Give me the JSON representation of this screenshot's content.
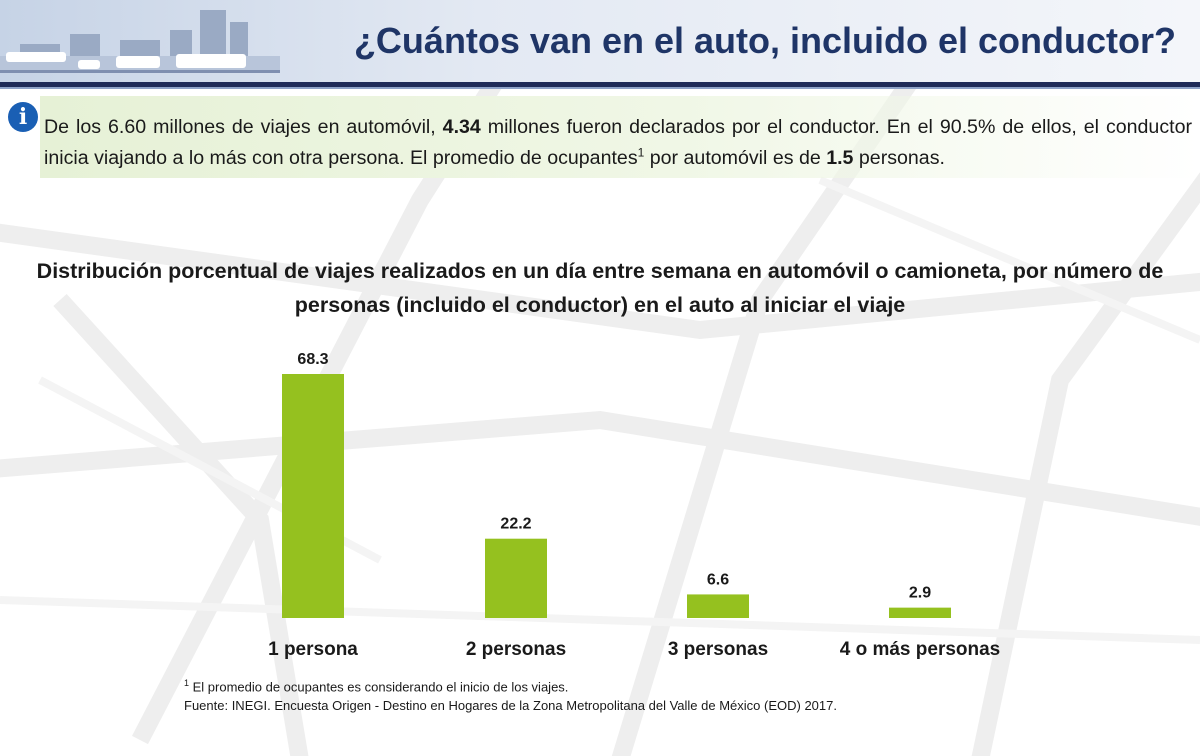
{
  "header": {
    "title": "¿Cuántos van en el auto, incluido el conductor?"
  },
  "intro": {
    "part1": "De los 6.60 millones de viajes en automóvil, ",
    "bold1": "4.34",
    "part2": " millones fueron declarados por el conductor. En el 90.5% de ellos, el conductor inicia viajando a lo más con otra persona. El promedio de ocupantes",
    "sup": "1",
    "part3": " por automóvil es de ",
    "bold2": "1.5",
    "part4": " personas."
  },
  "chart_data": {
    "type": "bar",
    "title": "Distribución porcentual de viajes realizados en un día entre semana en automóvil o camioneta, por número de personas (incluido el conductor) en el auto al iniciar el viaje",
    "categories": [
      "1 persona",
      "2 personas",
      "3 personas",
      "4 o más personas"
    ],
    "values": [
      68.3,
      22.2,
      6.6,
      2.9
    ],
    "value_labels": [
      "68.3",
      "22.2",
      "6.6",
      "2.9"
    ],
    "xlabel": "",
    "ylabel": "",
    "ylim": [
      0,
      68.3
    ],
    "grid": false,
    "bar_color": "#95c11f"
  },
  "footnote": {
    "sup": "1",
    "text": " El promedio de ocupantes es considerando el inicio de los viajes."
  },
  "source": "Fuente: INEGI. Encuesta Origen - Destino en Hogares de la Zona Metropolitana del Valle de México (EOD) 2017.",
  "colors": {
    "title": "#1f3567",
    "header_rule": "#1f2b58",
    "info_icon": "#1a5fb4",
    "intro_band": "#e6f1d6"
  },
  "icons": {
    "info": "i"
  }
}
